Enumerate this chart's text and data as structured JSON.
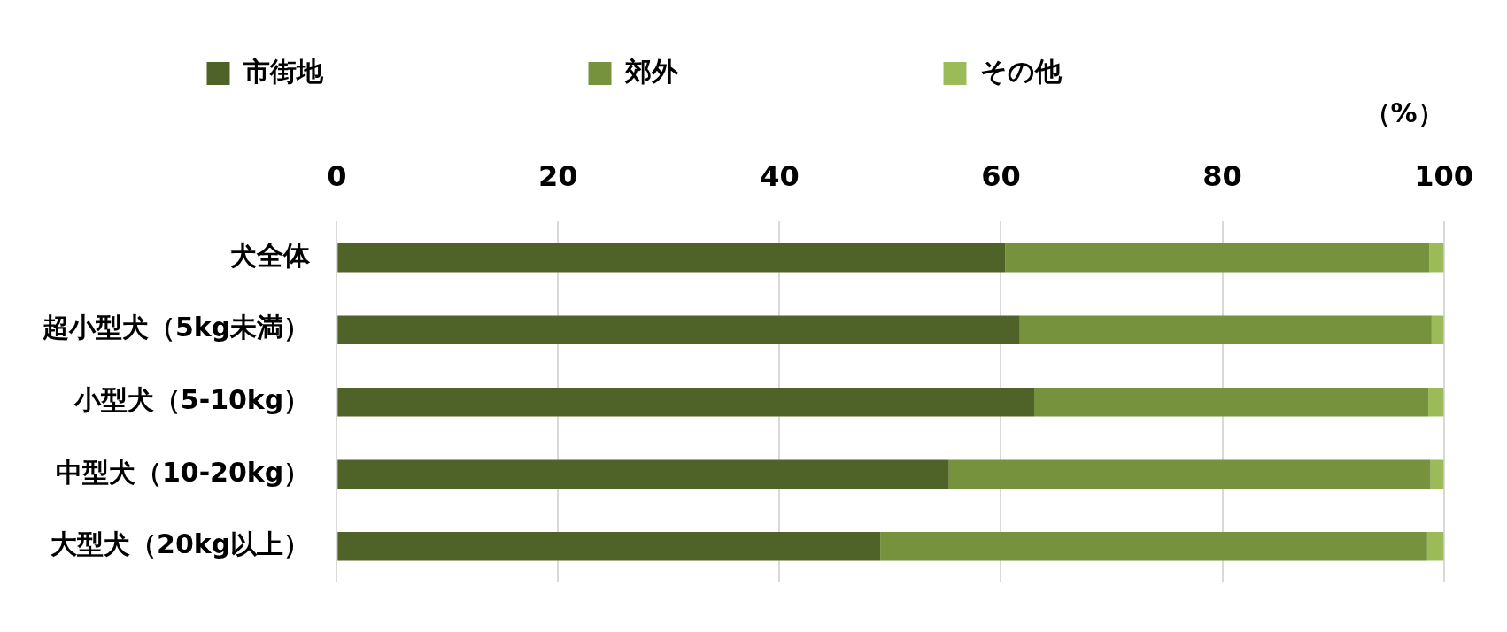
{
  "chart_data": {
    "type": "bar",
    "orientation": "horizontal",
    "stacked": true,
    "xlabel": "（%）",
    "categories": [
      "犬全体",
      "超小型犬（5kg未満）",
      "小型犬（5-10kg）",
      "中型犬（10-20kg）",
      "大型犬（20kg以上）"
    ],
    "series": [
      {
        "name": "市街地",
        "color": "#4f6228",
        "values": [
          60.4,
          61.7,
          63.0,
          55.3,
          49.1
        ]
      },
      {
        "name": "郊外",
        "color": "#76923c",
        "values": [
          38.3,
          37.2,
          35.6,
          43.5,
          49.4
        ]
      },
      {
        "name": "その他",
        "color": "#9bbb59",
        "values": [
          1.3,
          1.1,
          1.4,
          1.2,
          1.5
        ]
      }
    ],
    "xlim": [
      0,
      100
    ],
    "xticks": [
      0,
      20,
      40,
      60,
      80,
      100
    ],
    "grid": "x",
    "legend": "top"
  }
}
